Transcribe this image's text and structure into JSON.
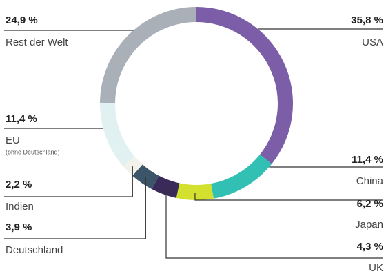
{
  "chart_data": {
    "type": "donut",
    "categories": [
      "USA",
      "China",
      "Japan",
      "UK",
      "Deutschland",
      "Indien",
      "EU",
      "Rest der Welt"
    ],
    "values": [
      35.8,
      11.4,
      6.2,
      4.3,
      3.9,
      2.2,
      11.4,
      24.9
    ],
    "value_labels": [
      "35,8 %",
      "11,4 %",
      "6,2 %",
      "4,3 %",
      "3,9 %",
      "2,2 %",
      "11,4 %",
      "24,9 %"
    ],
    "colors": [
      "#7b5ea7",
      "#33c0b4",
      "#d4e02e",
      "#3a2a5a",
      "#3d5568",
      "#f2f2ea",
      "#e1f1f2",
      "#a9b0b8"
    ],
    "annotations": [
      {
        "category": "EU",
        "text": "(ohne Deutschland)"
      }
    ]
  }
}
